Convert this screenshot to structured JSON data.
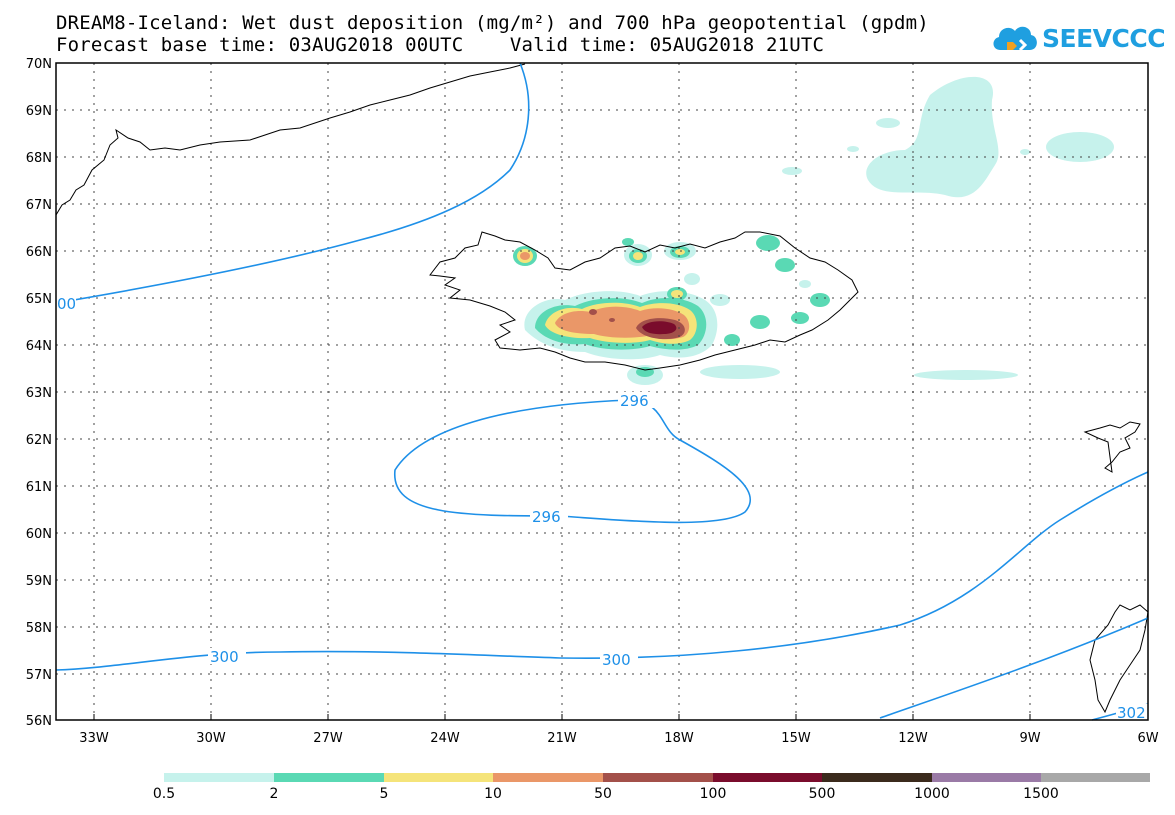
{
  "header": {
    "title_line1": "DREAM8-Iceland: Wet dust deposition (mg/m²) and 700 hPa geopotential (gpdm)",
    "title_line2": "Forecast base time: 03AUG2018 00UTC    Valid time: 05AUG2018 21UTC"
  },
  "logo": {
    "text": "SEEVCCC",
    "color": "#1f9fe0"
  },
  "map": {
    "lat_labels": [
      "70N",
      "69N",
      "68N",
      "67N",
      "66N",
      "65N",
      "64N",
      "63N",
      "62N",
      "61N",
      "60N",
      "59N",
      "58N",
      "57N",
      "56N"
    ],
    "lon_labels": [
      "33W",
      "30W",
      "27W",
      "24W",
      "21W",
      "18W",
      "15W",
      "12W",
      "9W",
      "6W"
    ],
    "contour_labels": [
      "00",
      "296",
      "296",
      "300",
      "300",
      "302"
    ],
    "contour_color": "#1e90e8"
  },
  "colorbar": {
    "colors": [
      "#c6f2ec",
      "#5ad9b4",
      "#f5e47a",
      "#ea9768",
      "#a3504a",
      "#7a0c2c",
      "#3b2a1c",
      "#9a7aa6",
      "#a8a8a8"
    ],
    "labels": [
      "0.5",
      "2",
      "5",
      "10",
      "50",
      "100",
      "500",
      "1000",
      "1500"
    ]
  }
}
